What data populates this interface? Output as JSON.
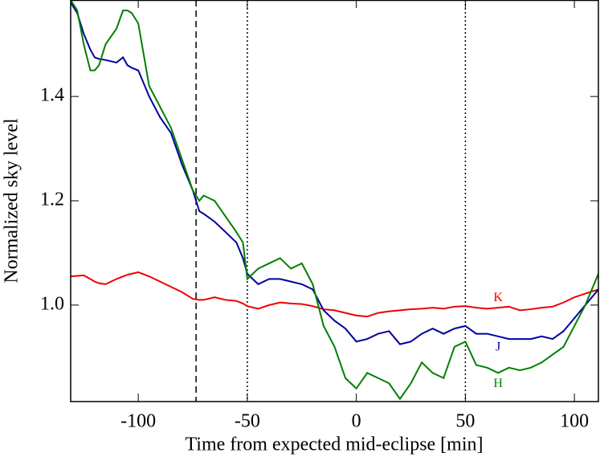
{
  "chart_data": {
    "type": "line",
    "xlabel": "Time from expected mid-eclipse [min]",
    "ylabel": "Normalized sky level",
    "xlim": [
      -131,
      111
    ],
    "ylim": [
      0.815,
      1.585
    ],
    "xticks": [
      -100,
      -50,
      0,
      50,
      100
    ],
    "yticks": [
      {
        "value": 1,
        "label": "1.0"
      },
      1.2,
      1.4
    ],
    "vlines": [
      {
        "x": -73.5,
        "style": "dashed"
      },
      {
        "x": -50,
        "style": "dotted"
      },
      {
        "x": 50,
        "style": "dotted"
      }
    ],
    "x": [
      -131,
      -128,
      -125,
      -122,
      -120,
      -118,
      -115,
      -110,
      -107,
      -105,
      -103,
      -100,
      -95,
      -90,
      -85,
      -80,
      -75,
      -72,
      -70,
      -65,
      -60,
      -55,
      -52,
      -50,
      -45,
      -40,
      -35,
      -30,
      -25,
      -20,
      -15,
      -10,
      -5,
      0,
      5,
      10,
      15,
      20,
      25,
      30,
      35,
      40,
      45,
      50,
      55,
      60,
      65,
      70,
      75,
      80,
      85,
      90,
      95,
      100,
      105,
      111
    ],
    "series": [
      {
        "name": "K",
        "color": "#ee0000",
        "values": [
          1.055,
          1.056,
          1.057,
          1.05,
          1.045,
          1.042,
          1.04,
          1.05,
          1.055,
          1.058,
          1.06,
          1.063,
          1.055,
          1.045,
          1.035,
          1.025,
          1.012,
          1.01,
          1.01,
          1.015,
          1.01,
          1.008,
          1.003,
          0.998,
          0.993,
          1.0,
          1.005,
          1.003,
          1.002,
          0.998,
          0.992,
          0.99,
          0.985,
          0.98,
          0.978,
          0.985,
          0.988,
          0.99,
          0.992,
          0.993,
          0.995,
          0.993,
          0.997,
          0.998,
          0.995,
          0.993,
          0.995,
          0.997,
          0.99,
          0.992,
          0.995,
          0.997,
          1.005,
          1.015,
          1.022,
          1.03
        ]
      },
      {
        "name": "J",
        "color": "#0000a0",
        "values": [
          1.58,
          1.56,
          1.52,
          1.49,
          1.475,
          1.472,
          1.47,
          1.465,
          1.475,
          1.46,
          1.455,
          1.45,
          1.4,
          1.36,
          1.33,
          1.27,
          1.22,
          1.18,
          1.175,
          1.16,
          1.14,
          1.12,
          1.09,
          1.06,
          1.04,
          1.05,
          1.05,
          1.045,
          1.04,
          1.03,
          0.99,
          0.97,
          0.955,
          0.93,
          0.935,
          0.945,
          0.95,
          0.925,
          0.93,
          0.945,
          0.955,
          0.945,
          0.955,
          0.96,
          0.945,
          0.945,
          0.94,
          0.935,
          0.935,
          0.935,
          0.94,
          0.935,
          0.95,
          0.975,
          1.0,
          1.03
        ]
      },
      {
        "name": "H",
        "color": "#008000",
        "values": [
          1.585,
          1.565,
          1.5,
          1.45,
          1.45,
          1.46,
          1.5,
          1.53,
          1.565,
          1.565,
          1.56,
          1.54,
          1.42,
          1.38,
          1.34,
          1.28,
          1.22,
          1.2,
          1.21,
          1.2,
          1.17,
          1.14,
          1.12,
          1.05,
          1.07,
          1.08,
          1.09,
          1.07,
          1.08,
          1.04,
          0.96,
          0.92,
          0.86,
          0.84,
          0.87,
          0.86,
          0.85,
          0.82,
          0.85,
          0.89,
          0.87,
          0.86,
          0.92,
          0.93,
          0.885,
          0.88,
          0.87,
          0.88,
          0.875,
          0.88,
          0.89,
          0.905,
          0.92,
          0.96,
          1.0,
          1.06
        ]
      }
    ]
  }
}
